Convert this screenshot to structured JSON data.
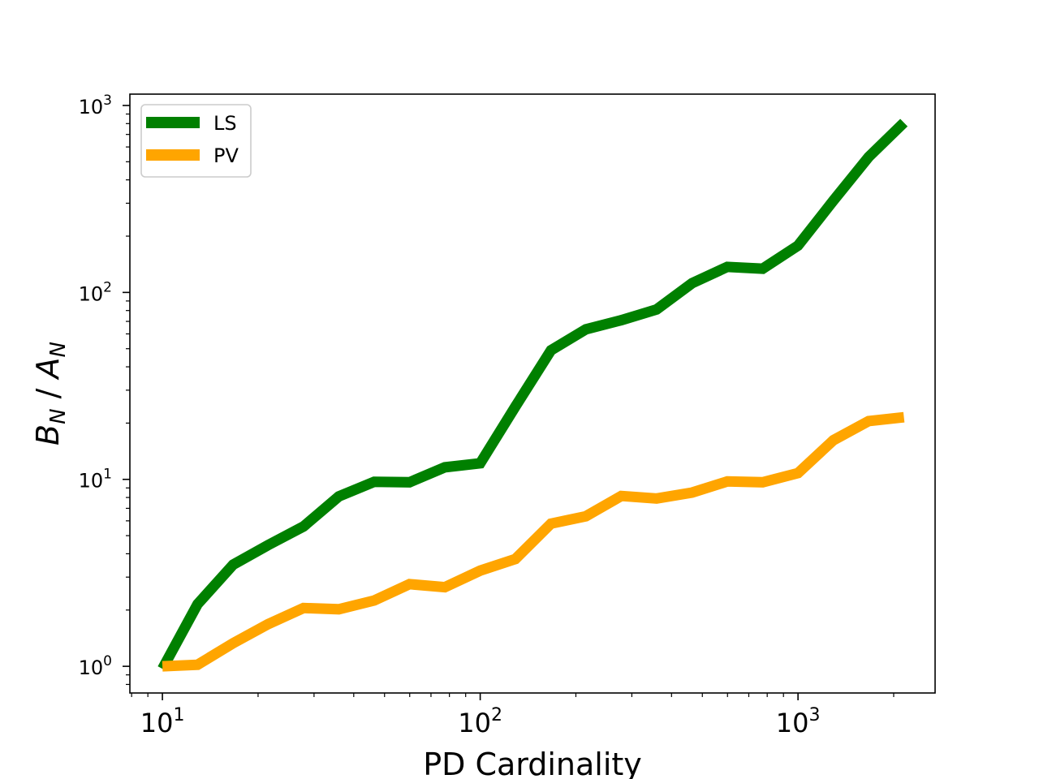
{
  "chart_data": {
    "type": "line",
    "title": "",
    "xlabel": "PD Cardinality",
    "ylabel": "B_N / A_N",
    "xscale": "log",
    "yscale": "log",
    "xlim": [
      7.9,
      2700
    ],
    "ylim": [
      0.72,
      1150
    ],
    "x_ticks": [
      {
        "value": 10,
        "base": "10",
        "exp": "1"
      },
      {
        "value": 100,
        "base": "10",
        "exp": "2"
      },
      {
        "value": 1000,
        "base": "10",
        "exp": "3"
      }
    ],
    "y_ticks": [
      {
        "value": 1,
        "base": "10",
        "exp": "0"
      },
      {
        "value": 10,
        "base": "10",
        "exp": "1"
      },
      {
        "value": 100,
        "base": "10",
        "exp": "2"
      },
      {
        "value": 1000,
        "base": "10",
        "exp": "3"
      }
    ],
    "grid": false,
    "legend_position": "top-left",
    "x": [
      10,
      12.9,
      16.7,
      21.5,
      27.8,
      35.9,
      46.4,
      59.9,
      77.4,
      100,
      129,
      167,
      215,
      278,
      359,
      464,
      599,
      774,
      1000,
      1292,
      1668,
      2154
    ],
    "series": [
      {
        "name": "LS",
        "color": "#008000",
        "values": [
          0.97,
          2.15,
          3.5,
          4.45,
          5.6,
          8.1,
          9.7,
          9.65,
          11.6,
          12.2,
          24.5,
          49.0,
          63.5,
          71.0,
          81.0,
          112,
          137,
          134,
          178,
          310,
          530,
          810
        ]
      },
      {
        "name": "PV",
        "color": "#FFA500",
        "values": [
          1.0,
          1.02,
          1.33,
          1.68,
          2.05,
          2.02,
          2.25,
          2.75,
          2.65,
          3.25,
          3.75,
          5.8,
          6.35,
          8.15,
          7.9,
          8.5,
          9.75,
          9.65,
          10.8,
          16.2,
          20.5,
          21.5
        ]
      }
    ]
  }
}
